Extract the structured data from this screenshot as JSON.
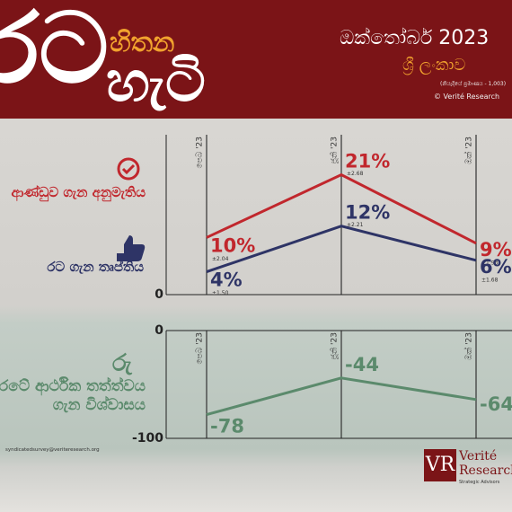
{
  "header": {
    "title_big": "රට",
    "title_small": "හිතන",
    "title_second": "හැටි",
    "date": "ඔක්තෝබර් 2023",
    "country": "ශ්‍රී ලංකාව",
    "note": "(නියැදියේ ප්‍රමාණය - 1,003)",
    "copyright": "© Verité Research"
  },
  "chart_data": [
    {
      "type": "line",
      "categories": [
        "පෙබ '23",
        "ජූනි '23",
        "ඔක් '23"
      ],
      "ylim": [
        0,
        28
      ],
      "yticks": [
        0
      ],
      "series": [
        {
          "name": "ආණ්ඩුව ගැන අනුමැතිය",
          "color": "#c1272d",
          "values": [
            10,
            21,
            9
          ],
          "value_labels": [
            "10%",
            "21%",
            "9%"
          ],
          "error_labels": [
            "±2.04",
            "±2.68",
            "±1.93"
          ]
        },
        {
          "name": "රට ගැන තෘප්තිය",
          "color": "#2e3466",
          "values": [
            4,
            12,
            6
          ],
          "value_labels": [
            "4%",
            "12%",
            "6%"
          ],
          "error_labels": [
            "±1.50",
            "±2.21",
            "±1.68"
          ]
        }
      ]
    },
    {
      "type": "line",
      "categories": [
        "පෙබ '23",
        "ජූනි '23",
        "ඔක් '23"
      ],
      "ylim": [
        -100,
        0
      ],
      "yticks": [
        0,
        -100
      ],
      "series": [
        {
          "name": "රටේ ආර්ථික තත්ත්වය ගැන විශ්වාසය",
          "color": "#5b8a6c",
          "values": [
            -78,
            -44,
            -64
          ]
        }
      ]
    }
  ],
  "footer": {
    "email": "syndicatedsurvey@veriteresearch.org",
    "logo": "VR",
    "org_1": "Verité",
    "org_2": "Research",
    "tagline": "Strategic Advisors"
  }
}
